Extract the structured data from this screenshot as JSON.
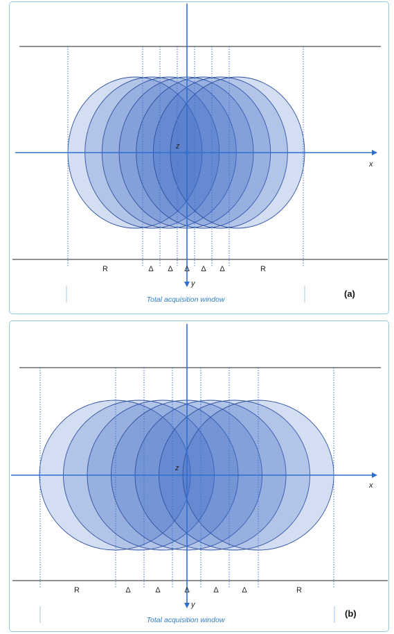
{
  "panels": [
    {
      "id": "a",
      "tag": "(a)",
      "axis_x": "x",
      "axis_y": "y",
      "axis_z": "z",
      "spacing_labels": [
        "R",
        "Δ",
        "Δ",
        "Δ",
        "Δ",
        "Δ",
        "R"
      ],
      "window_label": "Total acquisition window",
      "circle_count": 7
    },
    {
      "id": "b",
      "tag": "(b)",
      "axis_x": "x",
      "axis_y": "y",
      "axis_z": "z",
      "spacing_labels": [
        "R",
        "Δ",
        "Δ",
        "Δ",
        "Δ",
        "Δ",
        "R"
      ],
      "window_label": "Total acquisition window",
      "circle_count": 7
    }
  ],
  "colors": {
    "circle_fill": "#3a67c4",
    "circle_stroke": "#2d4f9e",
    "axis": "#2f6fd0",
    "dotted": "#3f74cf",
    "border": "#8fcbe8",
    "window_text": "#2f7fc6"
  }
}
